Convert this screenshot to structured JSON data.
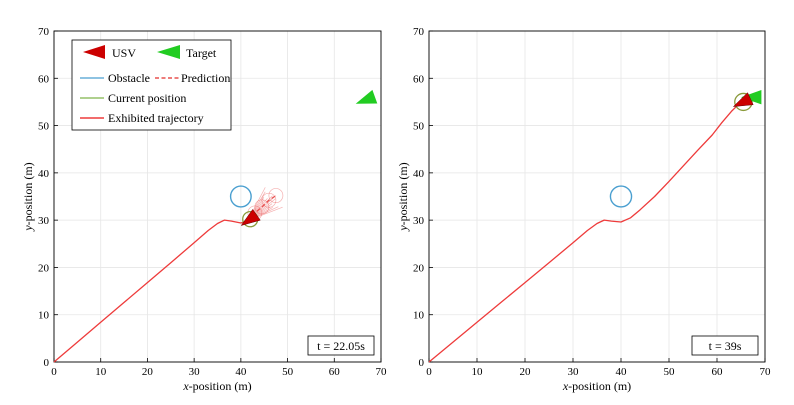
{
  "figure": {
    "legend": {
      "usv": "USV",
      "target": "Target",
      "obstacle": "Obstacle",
      "prediction": "Prediction",
      "current_position": "Current position",
      "exhibited_trajectory": "Exhibited trajectory"
    }
  },
  "colors": {
    "trajectory": "#ee3b3b",
    "prediction": "#e8504f",
    "obstacle": "#4a9fd0",
    "current_position": "#8a9a3a",
    "usv": "#cc0000",
    "target": "#22cc22",
    "grid": "#e6e6e6"
  },
  "chart_data": [
    {
      "type": "line",
      "xlabel_italic": "x",
      "xlabel_rest": "-position (m)",
      "ylabel_italic": "y",
      "ylabel_rest": "-position (m)",
      "xlim": [
        0,
        70
      ],
      "ylim": [
        0,
        70
      ],
      "xticks": [
        "0",
        "10",
        "20",
        "30",
        "40",
        "50",
        "60",
        "70"
      ],
      "yticks": [
        "0",
        "10",
        "20",
        "30",
        "40",
        "50",
        "60",
        "70"
      ],
      "grid": true,
      "time_label": "t = 22.05s",
      "obstacle": {
        "x": 40,
        "y": 35,
        "radius": 2.2
      },
      "trajectory": [
        [
          0,
          0
        ],
        [
          5,
          4.2
        ],
        [
          10,
          8.4
        ],
        [
          15,
          12.6
        ],
        [
          20,
          16.8
        ],
        [
          25,
          21
        ],
        [
          30,
          25.2
        ],
        [
          33,
          27.8
        ],
        [
          35,
          29.3
        ],
        [
          36.5,
          30
        ],
        [
          38,
          29.8
        ],
        [
          40,
          29.4
        ],
        [
          41.5,
          29.9
        ]
      ],
      "prediction": [
        [
          41.5,
          29.9
        ],
        [
          43,
          31.5
        ],
        [
          44.5,
          32.8
        ],
        [
          46,
          34.2
        ],
        [
          47.5,
          35.2
        ]
      ],
      "usv": {
        "x": 42,
        "y": 30.2,
        "heading_deg": 35
      },
      "current_position": {
        "x": 42,
        "y": 30.2,
        "radius": 1.6
      },
      "target": {
        "x": 67,
        "y": 55.5,
        "heading_deg": 20
      }
    },
    {
      "type": "line",
      "xlabel_italic": "x",
      "xlabel_rest": "-position (m)",
      "ylabel_italic": "y",
      "ylabel_rest": "-position (m)",
      "xlim": [
        0,
        70
      ],
      "ylim": [
        0,
        70
      ],
      "xticks": [
        "0",
        "10",
        "20",
        "30",
        "40",
        "50",
        "60",
        "70"
      ],
      "yticks": [
        "0",
        "10",
        "20",
        "30",
        "40",
        "50",
        "60",
        "70"
      ],
      "grid": true,
      "time_label": "t = 39s",
      "obstacle": {
        "x": 40,
        "y": 35,
        "radius": 2.2
      },
      "trajectory": [
        [
          0,
          0
        ],
        [
          5,
          4.2
        ],
        [
          10,
          8.4
        ],
        [
          15,
          12.6
        ],
        [
          20,
          16.8
        ],
        [
          25,
          21
        ],
        [
          30,
          25.2
        ],
        [
          33,
          27.8
        ],
        [
          35,
          29.3
        ],
        [
          36.5,
          30
        ],
        [
          38,
          29.8
        ],
        [
          40,
          29.6
        ],
        [
          42,
          30.5
        ],
        [
          44,
          32.2
        ],
        [
          47,
          35
        ],
        [
          50,
          38.2
        ],
        [
          53,
          41.5
        ],
        [
          56,
          44.8
        ],
        [
          59,
          48
        ],
        [
          61,
          50.6
        ],
        [
          63,
          53
        ],
        [
          64.5,
          54.5
        ],
        [
          65.5,
          55
        ]
      ],
      "prediction": [],
      "usv": {
        "x": 65.5,
        "y": 55,
        "heading_deg": 25
      },
      "current_position": {
        "x": 65.5,
        "y": 55,
        "radius": 1.8
      },
      "target": {
        "x": 67.5,
        "y": 56,
        "heading_deg": 0
      }
    }
  ]
}
